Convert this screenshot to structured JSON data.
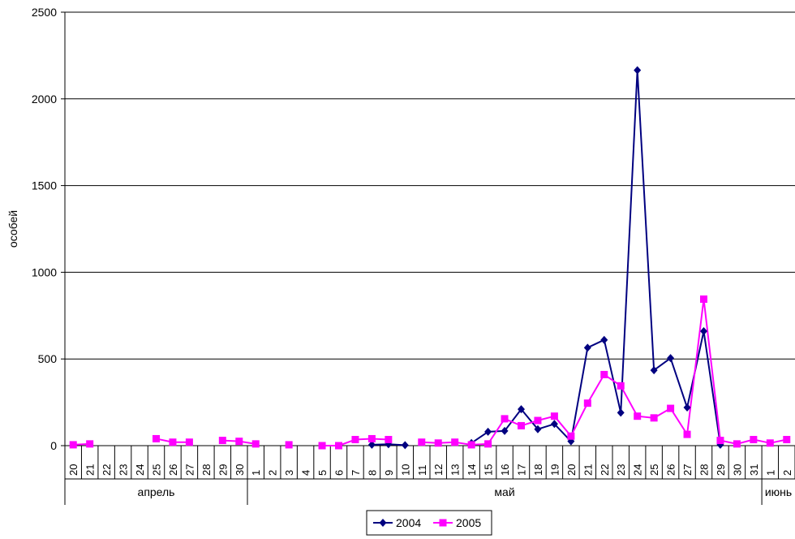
{
  "chart_data": {
    "type": "line",
    "ylabel": "особей",
    "ylim": [
      0,
      2500
    ],
    "yticks": [
      0,
      500,
      1000,
      1500,
      2000,
      2500
    ],
    "grid": "horizontal",
    "legend_position": "bottom-center",
    "categories": [
      "20",
      "21",
      "22",
      "23",
      "24",
      "25",
      "26",
      "27",
      "28",
      "29",
      "30",
      "1",
      "2",
      "3",
      "4",
      "5",
      "6",
      "7",
      "8",
      "9",
      "10",
      "11",
      "12",
      "13",
      "14",
      "15",
      "16",
      "17",
      "18",
      "19",
      "20",
      "21",
      "22",
      "23",
      "24",
      "25",
      "26",
      "27",
      "28",
      "29",
      "30",
      "31",
      "1",
      "2"
    ],
    "months": [
      {
        "label": "апрель",
        "start": 0,
        "end": 10
      },
      {
        "label": "май",
        "start": 11,
        "end": 41
      },
      {
        "label": "июнь",
        "start": 42,
        "end": 43
      }
    ],
    "series": [
      {
        "name": "2004",
        "color": "#000080",
        "marker": "diamond",
        "values": [
          null,
          null,
          null,
          null,
          null,
          null,
          null,
          null,
          null,
          null,
          null,
          null,
          null,
          null,
          null,
          null,
          null,
          null,
          5,
          8,
          3,
          null,
          null,
          null,
          15,
          80,
          85,
          210,
          95,
          125,
          25,
          565,
          610,
          190,
          2165,
          435,
          505,
          220,
          660,
          5,
          null,
          null,
          null,
          null
        ]
      },
      {
        "name": "2005",
        "color": "#ff00ff",
        "marker": "square",
        "values": [
          5,
          10,
          null,
          null,
          null,
          40,
          20,
          20,
          null,
          30,
          25,
          10,
          null,
          5,
          null,
          0,
          0,
          35,
          40,
          35,
          null,
          20,
          15,
          20,
          5,
          10,
          155,
          115,
          145,
          170,
          55,
          245,
          410,
          345,
          170,
          160,
          215,
          65,
          845,
          30,
          10,
          35,
          15,
          35
        ]
      }
    ]
  }
}
